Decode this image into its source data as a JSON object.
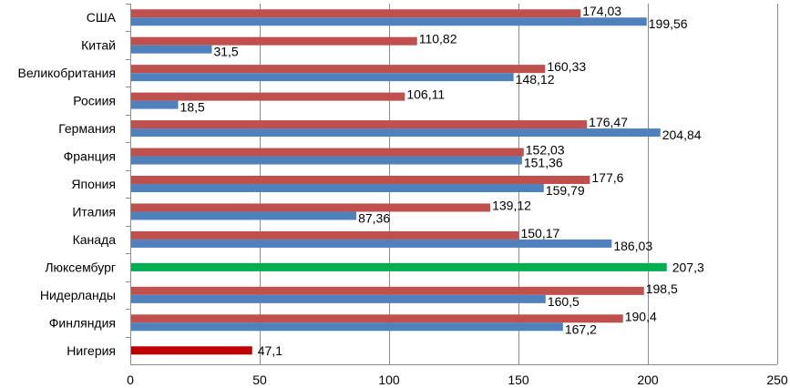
{
  "chart_data": {
    "type": "bar",
    "orientation": "horizontal",
    "categories": [
      "США",
      "Китай",
      "Великобритания",
      "Росиия",
      "Германия",
      "Франция",
      "Япония",
      "Италия",
      "Канада",
      "Люксембург",
      "Нидерланды",
      "Финляндия",
      "Нигерия"
    ],
    "series": [
      {
        "color": "#c0504d",
        "values": [
          174.03,
          110.82,
          160.33,
          106.11,
          176.47,
          152.03,
          177.6,
          139.12,
          150.17,
          null,
          198.5,
          190.4,
          null
        ]
      },
      {
        "color": "#4f81bd",
        "values": [
          199.56,
          31.5,
          148.12,
          18.5,
          204.84,
          151.36,
          159.79,
          87.36,
          186.03,
          null,
          160.5,
          167.2,
          null
        ]
      }
    ],
    "single_bars": [
      {
        "category": "Люксембург",
        "value": 207.3,
        "color": "#00b050"
      },
      {
        "category": "Нигерия",
        "value": 47.1,
        "color": "#c00000"
      }
    ],
    "labels": {
      "series": [
        [
          "174,03",
          "110,82",
          "160,33",
          "106,11",
          "176,47",
          "152,03",
          "177,6",
          "139,12",
          "150,17",
          null,
          "198,5",
          "190,4",
          null
        ],
        [
          "199,56",
          "31,5",
          "148,12",
          "18,5",
          "204,84",
          "151,36",
          "159,79",
          "87,36",
          "186,03",
          null,
          "160,5",
          "167,2",
          null
        ]
      ],
      "single_bars": [
        "207,3",
        "47,1"
      ]
    },
    "xlim": [
      0,
      250
    ],
    "xticks": [
      0,
      50,
      100,
      150,
      200,
      250
    ],
    "grid": true,
    "legend": "none",
    "title": "",
    "xlabel": "",
    "ylabel": ""
  }
}
